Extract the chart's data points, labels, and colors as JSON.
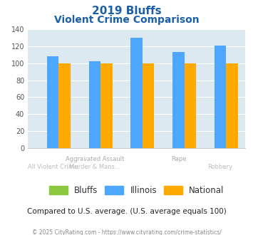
{
  "title_line1": "2019 Bluffs",
  "title_line2": "Violent Crime Comparison",
  "groups": [
    {
      "label_top": "",
      "label_bot": "All Violent Crime",
      "bluffs": 0,
      "illinois": 108,
      "national": 100
    },
    {
      "label_top": "Aggravated Assault",
      "label_bot": "Murder & Mans...",
      "bluffs": 0,
      "illinois": 102,
      "national": 100
    },
    {
      "label_top": "",
      "label_bot": "",
      "bluffs": 0,
      "illinois": 130,
      "national": 100
    },
    {
      "label_top": "Rape",
      "label_bot": "",
      "bluffs": 0,
      "illinois": 113,
      "national": 100
    },
    {
      "label_top": "",
      "label_bot": "Robbery",
      "bluffs": 0,
      "illinois": 121,
      "national": 100
    }
  ],
  "color_bluffs": "#8dc63f",
  "color_illinois": "#4da6ff",
  "color_national": "#ffaa00",
  "color_bg_plot": "#dce9f0",
  "color_title": "#1a5fa8",
  "color_xlabel_top": "#aaaaaa",
  "color_xlabel_bot": "#bbbbbb",
  "color_note": "#222222",
  "color_footer": "#888888",
  "ylim": [
    0,
    140
  ],
  "yticks": [
    0,
    20,
    40,
    60,
    80,
    100,
    120,
    140
  ],
  "legend_labels": [
    "Bluffs",
    "Illinois",
    "National"
  ],
  "note_text": "Compared to U.S. average. (U.S. average equals 100)",
  "footer_text": "© 2025 CityRating.com - https://www.cityrating.com/crime-statistics/"
}
